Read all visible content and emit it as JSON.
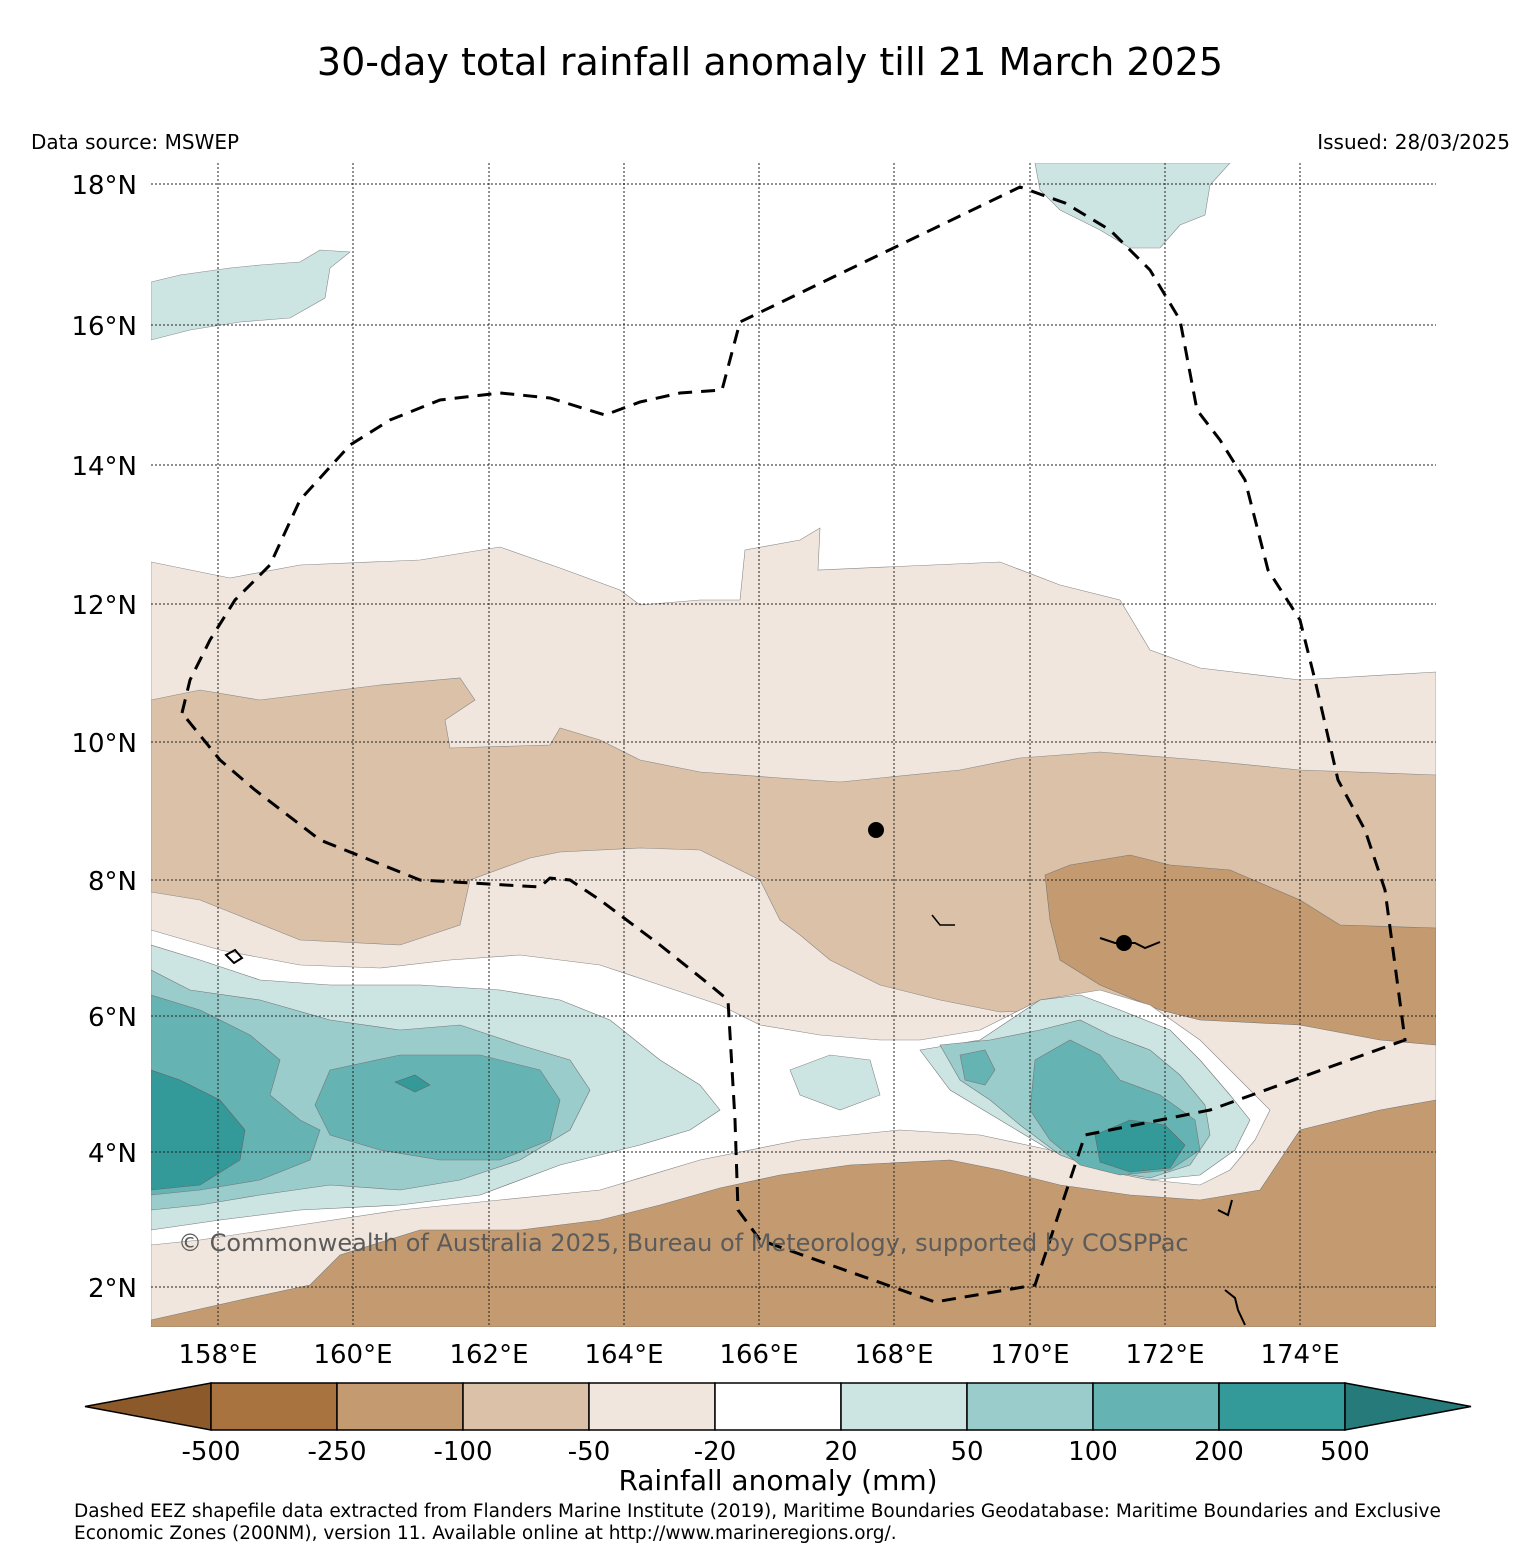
{
  "title": "30-day total rainfall anomaly till 21 March 2025",
  "data_source": "Data source: MSWEP",
  "issued": "Issued: 28/03/2025",
  "watermark": "© Commonwealth of Australia 2025, Bureau of Meteorology, supported by COSPPac",
  "lat_labels": [
    "18°N",
    "16°N",
    "14°N",
    "12°N",
    "10°N",
    "8°N",
    "6°N",
    "4°N",
    "2°N"
  ],
  "lon_labels": [
    "158°E",
    "160°E",
    "162°E",
    "164°E",
    "166°E",
    "168°E",
    "170°E",
    "172°E",
    "174°E"
  ],
  "colorbar": {
    "title": "Rainfall anomaly (mm)",
    "ticks": [
      "-500",
      "-250",
      "-100",
      "-50",
      "-20",
      "20",
      "50",
      "100",
      "200",
      "500"
    ],
    "colors": [
      "#8c5a2a",
      "#a8733f",
      "#c49a70",
      "#dac1a8",
      "#f0e6dd",
      "#ffffff",
      "#cce5e3",
      "#99cccb",
      "#66b3b3",
      "#339999",
      "#267a7a"
    ]
  },
  "footnote": "Dashed EEZ shapefile data extracted from Flanders Marine Institute (2019), Maritime Boundaries Geodatabase: Maritime Boundaries and Exclusive Economic Zones (200NM), version 11. Available online at http://www.marineregions.org/."
}
